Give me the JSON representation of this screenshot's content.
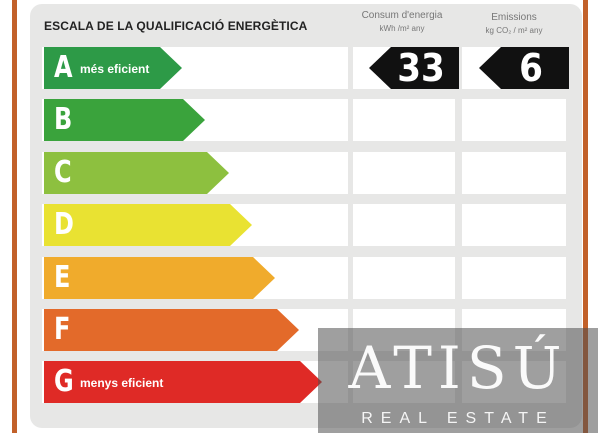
{
  "label": {
    "title": "ESCALA DE LA QUALIFICACIÓ ENERGÈTICA",
    "consumption_header": "Consum d'energia",
    "consumption_unit": "kWh /m² any",
    "emissions_header": "Emissions",
    "emissions_unit": "kg CO₂ / m² any"
  },
  "ratings": [
    {
      "letter": "A",
      "note": "més eficient",
      "color": "#2d9a47"
    },
    {
      "letter": "B",
      "note": "",
      "color": "#3aa33c"
    },
    {
      "letter": "C",
      "note": "",
      "color": "#8dc03f"
    },
    {
      "letter": "D",
      "note": "",
      "color": "#e9e232"
    },
    {
      "letter": "E",
      "note": "",
      "color": "#f0ab2c"
    },
    {
      "letter": "F",
      "note": "",
      "color": "#e36a2a"
    },
    {
      "letter": "G",
      "note": "menys eficient",
      "color": "#df2a26"
    }
  ],
  "current": {
    "rating": "A",
    "consumption_value": "33",
    "emissions_value": "6",
    "value_color": "#111111"
  },
  "watermark": {
    "brand": "ATISÚ",
    "tagline": "REAL ESTATE"
  }
}
